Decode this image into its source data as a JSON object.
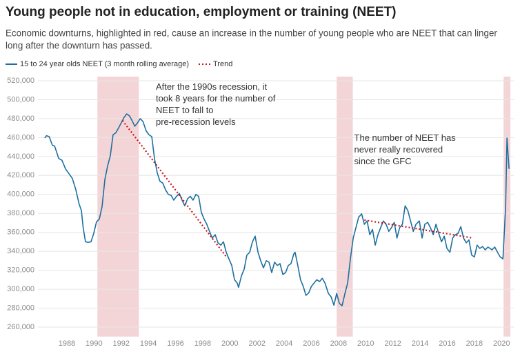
{
  "chart_data": {
    "type": "line",
    "title": "Young people not in education, employment or training (NEET)",
    "subtitle": [
      "Economic downturns, highlighted in red, cause an increase in the number of young people who are NEET that can linger",
      "long after the downturn has passed."
    ],
    "xlim": [
      1985.87,
      2020.9
    ],
    "xticks": [
      1988,
      1990,
      1992,
      1994,
      1996,
      1998,
      2000,
      2002,
      2004,
      2006,
      2008,
      2010,
      2012,
      2014,
      2016,
      2018,
      2020
    ],
    "ylim": [
      250000,
      520000
    ],
    "yticks": [
      {
        "value": 260000,
        "label": "260,000"
      },
      {
        "value": 280000,
        "label": "280,000"
      },
      {
        "value": 300000,
        "label": "300,000"
      },
      {
        "value": 320000,
        "label": "320,000"
      },
      {
        "value": 340000,
        "label": "340,000"
      },
      {
        "value": 360000,
        "label": "360,000"
      },
      {
        "value": 380000,
        "label": "380,000"
      },
      {
        "value": 400000,
        "label": "400,000"
      },
      {
        "value": 420000,
        "label": "420,000"
      },
      {
        "value": 440000,
        "label": "440,000"
      },
      {
        "value": 460000,
        "label": "460,000"
      },
      {
        "value": 480000,
        "label": "480,000"
      },
      {
        "value": 500000,
        "label": "500,000"
      },
      {
        "value": 520000,
        "label": "520,000"
      }
    ],
    "grid": true,
    "recessions": [
      [
        1990.25,
        1993.3
      ],
      [
        2007.86,
        2009.05
      ],
      [
        2020.15,
        2020.65
      ]
    ],
    "recession_color": "#f4d5d7",
    "series": [
      {
        "name": "15 to 24 year olds NEET (3 month rolling average)",
        "color": "#1c6f9f",
        "style": "solid",
        "x": [
          1986.37,
          1986.5,
          1986.7,
          1986.93,
          1987.1,
          1987.4,
          1987.64,
          1987.9,
          1988.15,
          1988.4,
          1988.66,
          1988.9,
          1989.07,
          1989.2,
          1989.37,
          1989.57,
          1989.78,
          1989.98,
          1990.18,
          1990.39,
          1990.59,
          1990.8,
          1991.0,
          1991.2,
          1991.4,
          1991.6,
          1991.8,
          1992.0,
          1992.2,
          1992.4,
          1992.6,
          1992.8,
          1993.0,
          1993.2,
          1993.4,
          1993.6,
          1993.84,
          1994.04,
          1994.25,
          1994.45,
          1994.65,
          1994.85,
          1995.06,
          1995.26,
          1995.47,
          1995.67,
          1995.87,
          1996.07,
          1996.28,
          1996.48,
          1996.68,
          1996.89,
          1997.09,
          1997.29,
          1997.5,
          1997.7,
          1997.9,
          1998.1,
          1998.3,
          1998.5,
          1998.7,
          1998.92,
          1999.12,
          1999.33,
          1999.53,
          1999.73,
          1999.93,
          2000.14,
          2000.34,
          2000.54,
          2000.64,
          2000.85,
          2001.05,
          2001.25,
          2001.46,
          2001.66,
          2001.86,
          2002.07,
          2002.27,
          2002.47,
          2002.68,
          2002.88,
          2003.08,
          2003.29,
          2003.49,
          2003.69,
          2003.9,
          2004.1,
          2004.3,
          2004.5,
          2004.7,
          2004.8,
          2005.0,
          2005.2,
          2005.4,
          2005.6,
          2005.8,
          2006.0,
          2006.2,
          2006.4,
          2006.6,
          2006.8,
          2007.0,
          2007.25,
          2007.45,
          2007.66,
          2007.86,
          2008.06,
          2008.26,
          2008.47,
          2008.67,
          2008.87,
          2009.08,
          2009.28,
          2009.48,
          2009.7,
          2009.9,
          2010.1,
          2010.3,
          2010.5,
          2010.7,
          2010.9,
          2011.1,
          2011.3,
          2011.5,
          2011.7,
          2011.9,
          2012.1,
          2012.3,
          2012.5,
          2012.7,
          2012.9,
          2013.1,
          2013.3,
          2013.5,
          2013.7,
          2013.95,
          2014.15,
          2014.35,
          2014.56,
          2014.76,
          2014.97,
          2015.17,
          2015.37,
          2015.58,
          2015.78,
          2015.98,
          2016.2,
          2016.4,
          2016.6,
          2016.8,
          2017.0,
          2017.2,
          2017.4,
          2017.6,
          2017.8,
          2018.0,
          2018.2,
          2018.4,
          2018.6,
          2018.8,
          2019.0,
          2019.3,
          2019.5,
          2019.7,
          2019.9,
          2020.1,
          2020.3,
          2020.4,
          2020.55
        ],
        "values": [
          459500,
          462000,
          461000,
          452000,
          451000,
          438000,
          436000,
          427000,
          422000,
          417000,
          405000,
          390000,
          383000,
          365000,
          350000,
          349500,
          350000,
          359000,
          371000,
          374000,
          387000,
          416000,
          430000,
          441000,
          463000,
          465000,
          470000,
          475500,
          481000,
          485000,
          483000,
          478000,
          472000,
          475500,
          480000,
          477000,
          467000,
          463000,
          461000,
          438000,
          423000,
          414000,
          412000,
          405000,
          400000,
          399000,
          394000,
          398000,
          401000,
          394000,
          388000,
          395500,
          398000,
          394000,
          400000,
          398000,
          381000,
          374000,
          368500,
          361000,
          354000,
          357500,
          349000,
          346500,
          350000,
          339000,
          332000,
          325000,
          310000,
          306500,
          302000,
          314000,
          321000,
          336000,
          339000,
          350000,
          356000,
          339000,
          330000,
          322500,
          330000,
          328500,
          317500,
          328500,
          325000,
          327000,
          315500,
          317500,
          325000,
          327000,
          337000,
          339000,
          325000,
          310000,
          303000,
          293500,
          296000,
          303000,
          306500,
          310000,
          308000,
          311500,
          306500,
          295500,
          292000,
          283000,
          295500,
          285000,
          282500,
          295500,
          306500,
          332000,
          354000,
          365000,
          376000,
          379500,
          368500,
          372000,
          357500,
          363000,
          346500,
          357500,
          365000,
          372000,
          368500,
          361000,
          365000,
          370500,
          354000,
          365000,
          368500,
          388000,
          383000,
          372000,
          361000,
          368500,
          372000,
          354000,
          368500,
          370500,
          365000,
          357500,
          368500,
          359000,
          350000,
          356000,
          343000,
          339000,
          354000,
          357500,
          359000,
          366000,
          354000,
          349000,
          352000,
          336000,
          334000,
          346500,
          343000,
          345000,
          341500,
          344500,
          341500,
          344500,
          339000,
          334000,
          332000,
          387000,
          459500,
          427000
        ]
      },
      {
        "name": "Trend",
        "color": "#c8161d",
        "style": "dotted",
        "x": [
          1992.1,
          1999.8,
          2009.9,
          2017.9
        ],
        "values": [
          478000,
          333000,
          373000,
          354000
        ]
      }
    ],
    "trend_segments": [
      [
        0,
        2
      ],
      [
        2,
        4
      ]
    ],
    "annotations": [
      {
        "x": 1994.55,
        "y": 513000,
        "lines": [
          "After the 1990s recession, it",
          "took 8 years for the number of",
          "NEET to fall to",
          "pre-recession levels"
        ]
      },
      {
        "x": 2009.15,
        "y": 459000,
        "lines": [
          "The number of NEET has",
          "never really recovered",
          "since the GFC"
        ]
      }
    ]
  }
}
